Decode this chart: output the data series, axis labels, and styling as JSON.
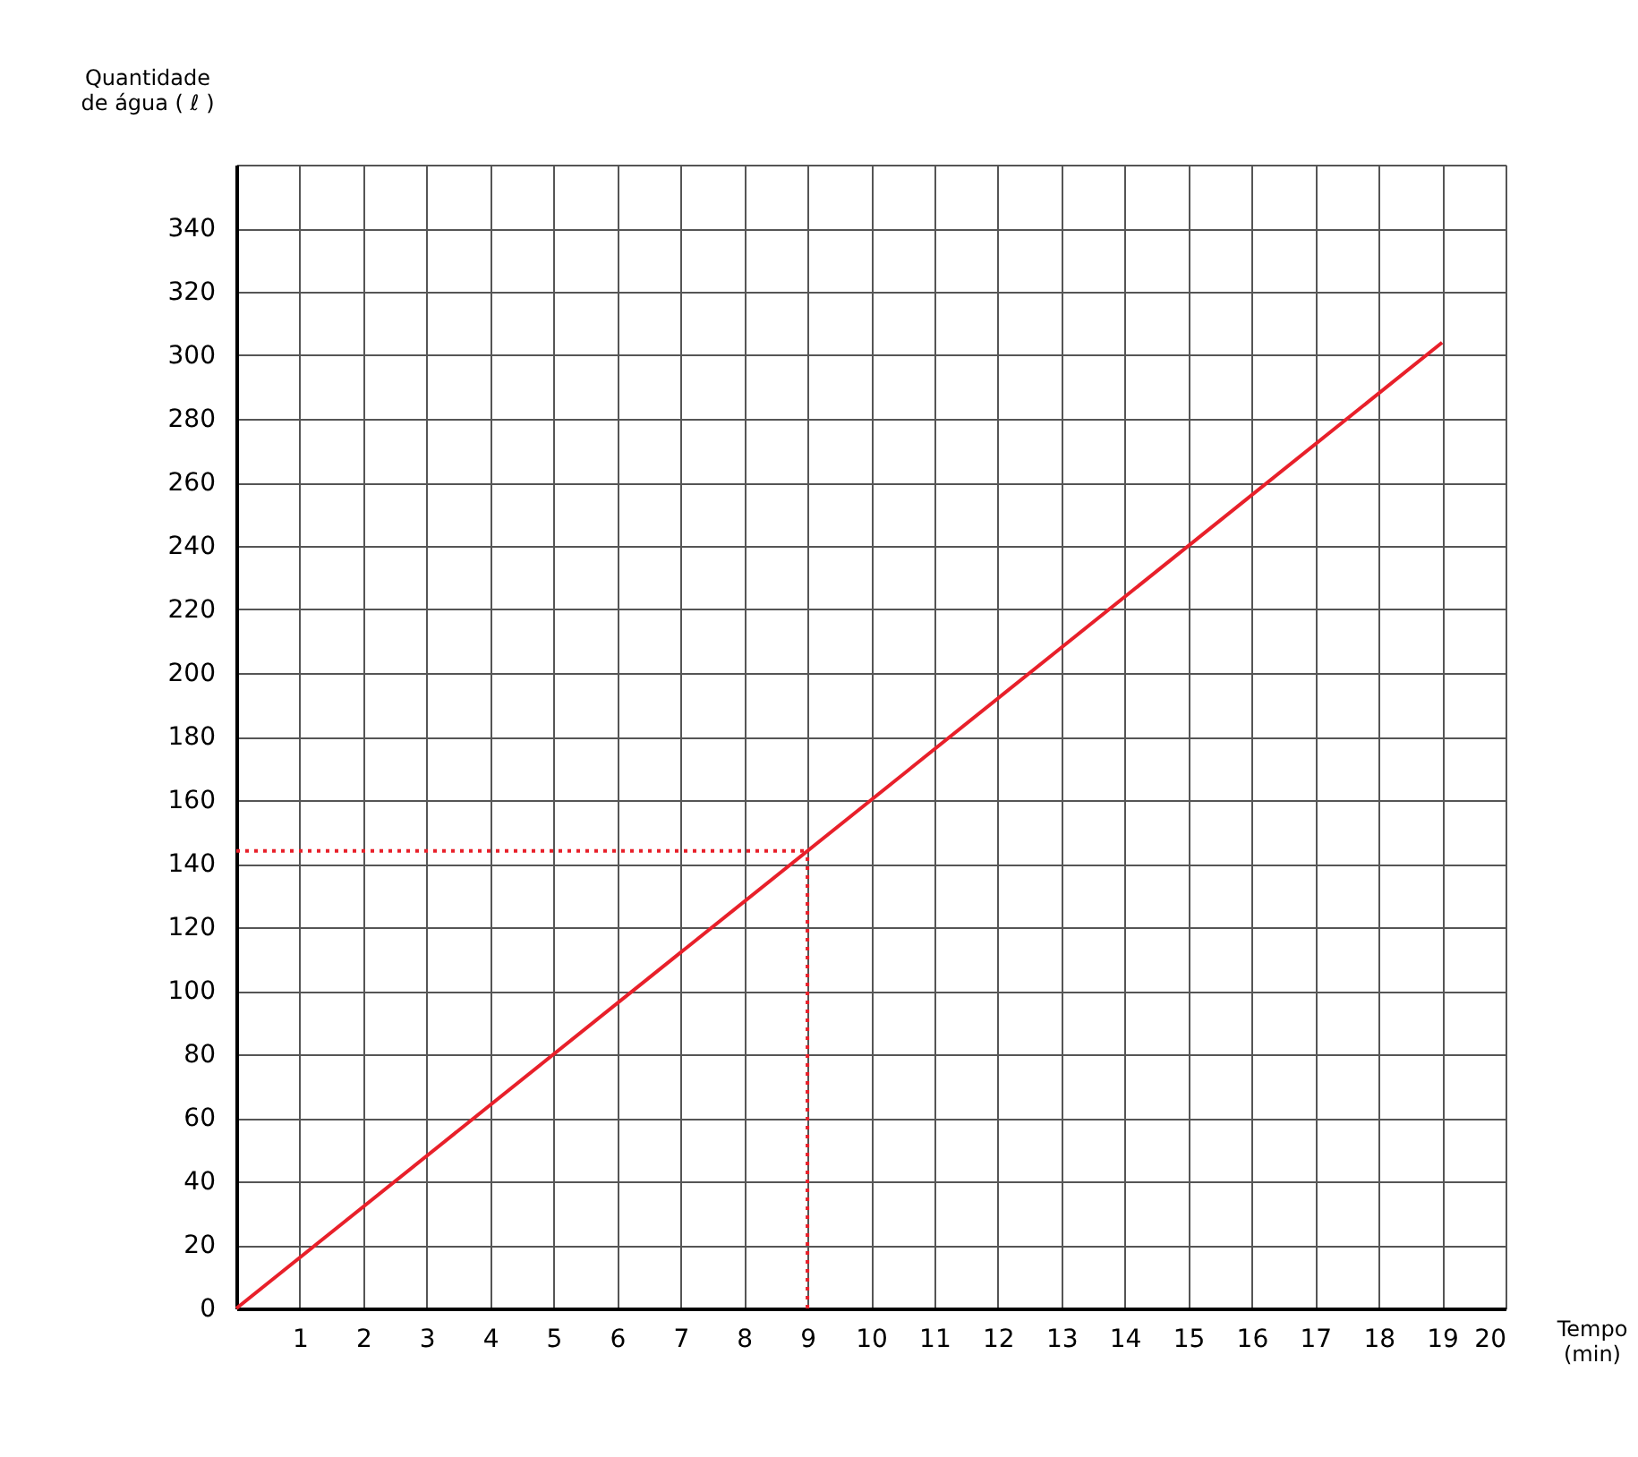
{
  "chart_data": {
    "type": "line",
    "ylabel": "Quantidade de água ( ℓ )",
    "xlabel": "Tempo (min)",
    "xlim": [
      0,
      20
    ],
    "xticks": [
      1,
      2,
      3,
      4,
      5,
      6,
      7,
      8,
      9,
      10,
      11,
      12,
      13,
      14,
      15,
      16,
      17,
      18,
      19,
      20
    ],
    "ylim": [
      0,
      360
    ],
    "yticks": [
      0,
      20,
      40,
      60,
      80,
      100,
      120,
      140,
      160,
      180,
      200,
      220,
      240,
      260,
      280,
      300,
      320,
      340,
      {
        "value": 360,
        "label": null
      }
    ],
    "grid": true,
    "marker": "none",
    "series": [
      {
        "color": "#e8202a",
        "line_style": "solid",
        "x": [
          0,
          19
        ],
        "values": [
          0,
          304
        ]
      },
      {
        "color": "#e8202a",
        "line_style": "dotted",
        "x": [
          0,
          9
        ],
        "values": [
          144,
          144
        ]
      },
      {
        "color": "#e8202a",
        "line_style": "dotted",
        "x": [
          9,
          9
        ],
        "values": [
          0,
          144
        ]
      }
    ]
  }
}
